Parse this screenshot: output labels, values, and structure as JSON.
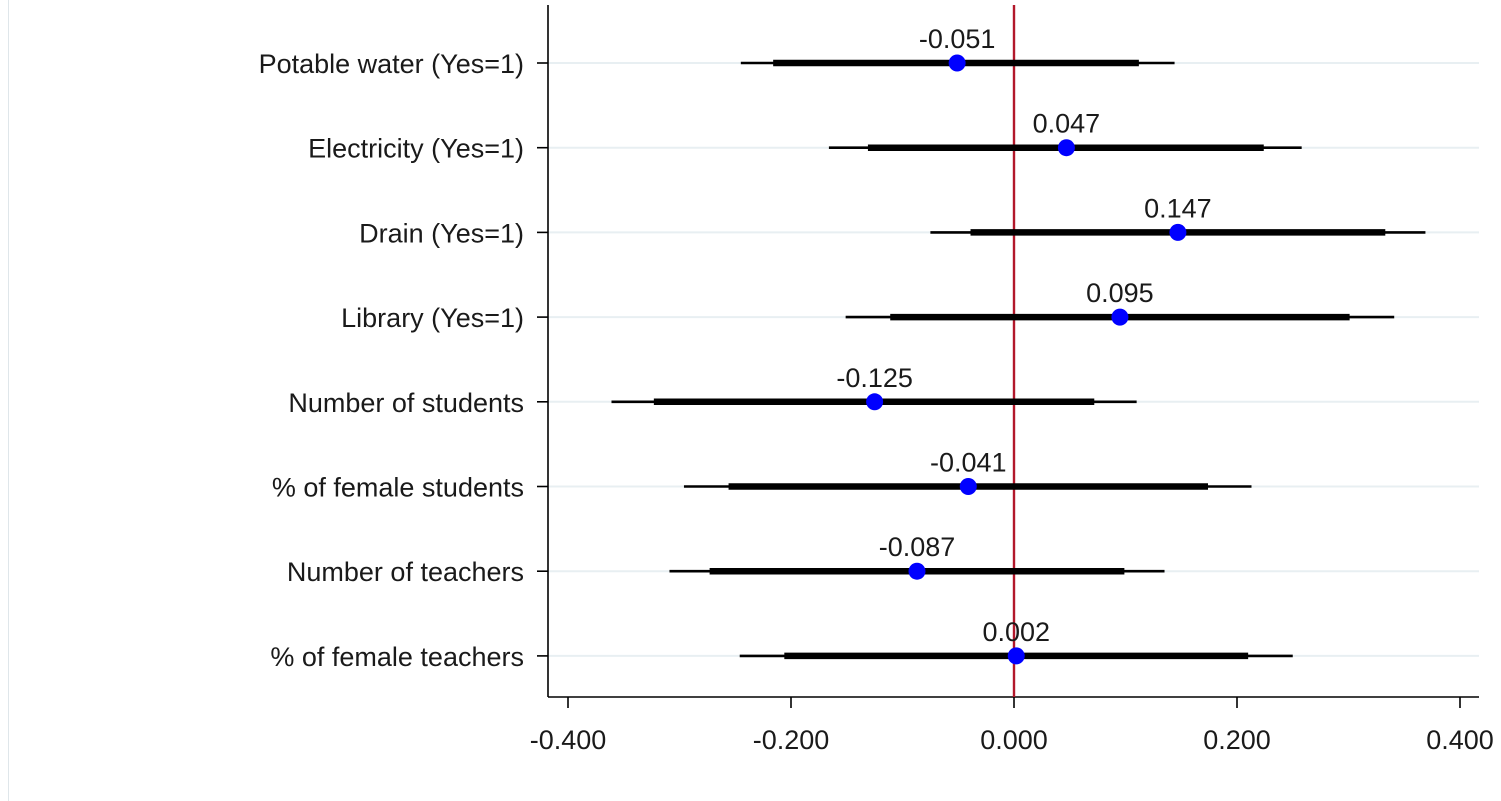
{
  "chart_data": {
    "type": "coefficient-plot",
    "title": "",
    "xlabel": "",
    "ylabel": "",
    "xlim": [
      -0.42,
      0.42
    ],
    "x_ticks": [
      -0.4,
      -0.2,
      0.0,
      0.2,
      0.4
    ],
    "x_tick_labels": [
      "-0.400",
      "-0.200",
      "0.000",
      "0.200",
      "0.400"
    ],
    "reference_line": 0.0,
    "grid": "horizontal",
    "legend": "none",
    "colors": {
      "point": "#0000ff",
      "interval": "#000000",
      "reference_line": "#b2182b",
      "grid": "#e8eff2",
      "axis": "#000000"
    },
    "rows": [
      {
        "label": "Potable water (Yes=1)",
        "estimate": -0.051,
        "value_label": "-0.051",
        "ci_inner": [
          -0.216,
          0.112
        ],
        "ci_outer": [
          -0.245,
          0.144
        ]
      },
      {
        "label": "Electricity (Yes=1)",
        "estimate": 0.047,
        "value_label": "0.047",
        "ci_inner": [
          -0.131,
          0.224
        ],
        "ci_outer": [
          -0.166,
          0.258
        ]
      },
      {
        "label": "Drain (Yes=1)",
        "estimate": 0.147,
        "value_label": "0.147",
        "ci_inner": [
          -0.039,
          0.333
        ],
        "ci_outer": [
          -0.075,
          0.369
        ]
      },
      {
        "label": "Library (Yes=1)",
        "estimate": 0.095,
        "value_label": "0.095",
        "ci_inner": [
          -0.111,
          0.301
        ],
        "ci_outer": [
          -0.151,
          0.341
        ]
      },
      {
        "label": "Number of students",
        "estimate": -0.125,
        "value_label": "-0.125",
        "ci_inner": [
          -0.323,
          0.072
        ],
        "ci_outer": [
          -0.361,
          0.11
        ]
      },
      {
        "label": "% of female students",
        "estimate": -0.041,
        "value_label": "-0.041",
        "ci_inner": [
          -0.256,
          0.174
        ],
        "ci_outer": [
          -0.296,
          0.213
        ]
      },
      {
        "label": "Number of teachers",
        "estimate": -0.087,
        "value_label": "-0.087",
        "ci_inner": [
          -0.273,
          0.099
        ],
        "ci_outer": [
          -0.309,
          0.135
        ]
      },
      {
        "label": "% of female teachers",
        "estimate": 0.002,
        "value_label": "0.002",
        "ci_inner": [
          -0.206,
          0.21
        ],
        "ci_outer": [
          -0.246,
          0.25
        ]
      }
    ]
  }
}
